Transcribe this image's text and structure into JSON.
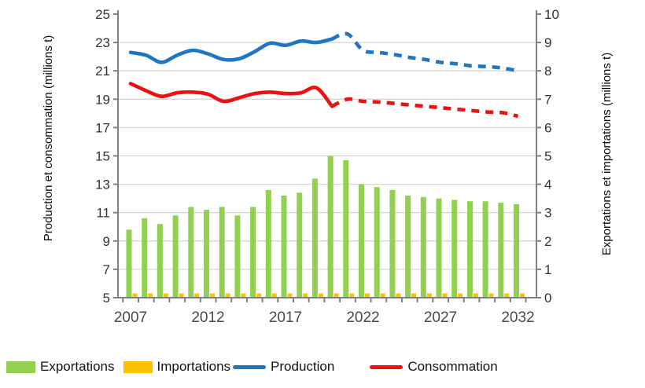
{
  "chart_data": {
    "type": "combo",
    "title": "",
    "x": [
      2007,
      2008,
      2009,
      2010,
      2011,
      2012,
      2013,
      2014,
      2015,
      2016,
      2017,
      2018,
      2019,
      2020,
      2021,
      2022,
      2023,
      2024,
      2025,
      2026,
      2027,
      2028,
      2029,
      2030,
      2031,
      2032
    ],
    "x_axis": {
      "tick_labels": [
        "2007",
        "2012",
        "2017",
        "2022",
        "2027",
        "2032"
      ]
    },
    "left_axis": {
      "title": "Production et consommation (millions t)",
      "min": 5,
      "max": 25,
      "ticks": [
        5,
        7,
        9,
        11,
        13,
        15,
        17,
        19,
        21,
        23,
        25
      ]
    },
    "right_axis": {
      "title": "Exportations et importations (millions t)",
      "min": 0,
      "max": 10,
      "ticks": [
        0,
        1,
        2,
        3,
        4,
        5,
        6,
        7,
        8,
        9,
        10
      ]
    },
    "grid": "horizontal",
    "legend_position": "bottom",
    "projection_start_year": 2021,
    "series": [
      {
        "name": "Exportations",
        "type": "bar",
        "axis": "right",
        "color": "#92D050",
        "values": [
          2.4,
          2.8,
          2.6,
          2.9,
          3.2,
          3.1,
          3.2,
          2.9,
          3.2,
          3.8,
          3.6,
          3.7,
          4.2,
          5.0,
          4.85,
          4.0,
          3.9,
          3.8,
          3.6,
          3.55,
          3.5,
          3.45,
          3.4,
          3.4,
          3.35,
          3.3
        ]
      },
      {
        "name": "Importations",
        "type": "bar",
        "axis": "right",
        "color": "#FFC000",
        "values": [
          0.15,
          0.15,
          0.15,
          0.15,
          0.15,
          0.15,
          0.15,
          0.15,
          0.15,
          0.15,
          0.15,
          0.15,
          0.15,
          0.15,
          0.15,
          0.15,
          0.15,
          0.15,
          0.15,
          0.15,
          0.15,
          0.15,
          0.15,
          0.15,
          0.15,
          0.15
        ]
      },
      {
        "name": "Production",
        "type": "line",
        "axis": "left",
        "color": "#1F76C2",
        "dashed_from_index": 13,
        "values": [
          22.3,
          22.1,
          21.6,
          22.1,
          22.45,
          22.2,
          21.8,
          21.85,
          22.35,
          22.95,
          22.8,
          23.1,
          23.0,
          23.25,
          23.6,
          22.45,
          22.3,
          22.15,
          21.95,
          21.8,
          21.6,
          21.5,
          21.35,
          21.3,
          21.2,
          21.0
        ]
      },
      {
        "name": "Consommation",
        "type": "line",
        "axis": "left",
        "color": "#EE1111",
        "dashed_from_index": 13,
        "values": [
          20.1,
          19.6,
          19.2,
          19.45,
          19.5,
          19.35,
          18.85,
          19.1,
          19.4,
          19.5,
          19.4,
          19.45,
          19.8,
          18.5,
          19.0,
          18.85,
          18.8,
          18.7,
          18.6,
          18.5,
          18.4,
          18.3,
          18.2,
          18.1,
          18.05,
          17.8
        ]
      }
    ]
  },
  "legend": {
    "items": [
      {
        "label": "Exportations",
        "swatch": "rect",
        "color": "#92D050"
      },
      {
        "label": "Importations",
        "swatch": "rect",
        "color": "#FFC000"
      },
      {
        "label": "Production",
        "swatch": "line",
        "color": "#1F76C2"
      },
      {
        "label": "Consommation",
        "swatch": "line",
        "color": "#EE1111"
      }
    ]
  },
  "colors": {
    "grid": "#d6d6d6",
    "axis": "#808080",
    "y_tick_text": "#333333",
    "x_tick_text": "#4a4a4a"
  }
}
